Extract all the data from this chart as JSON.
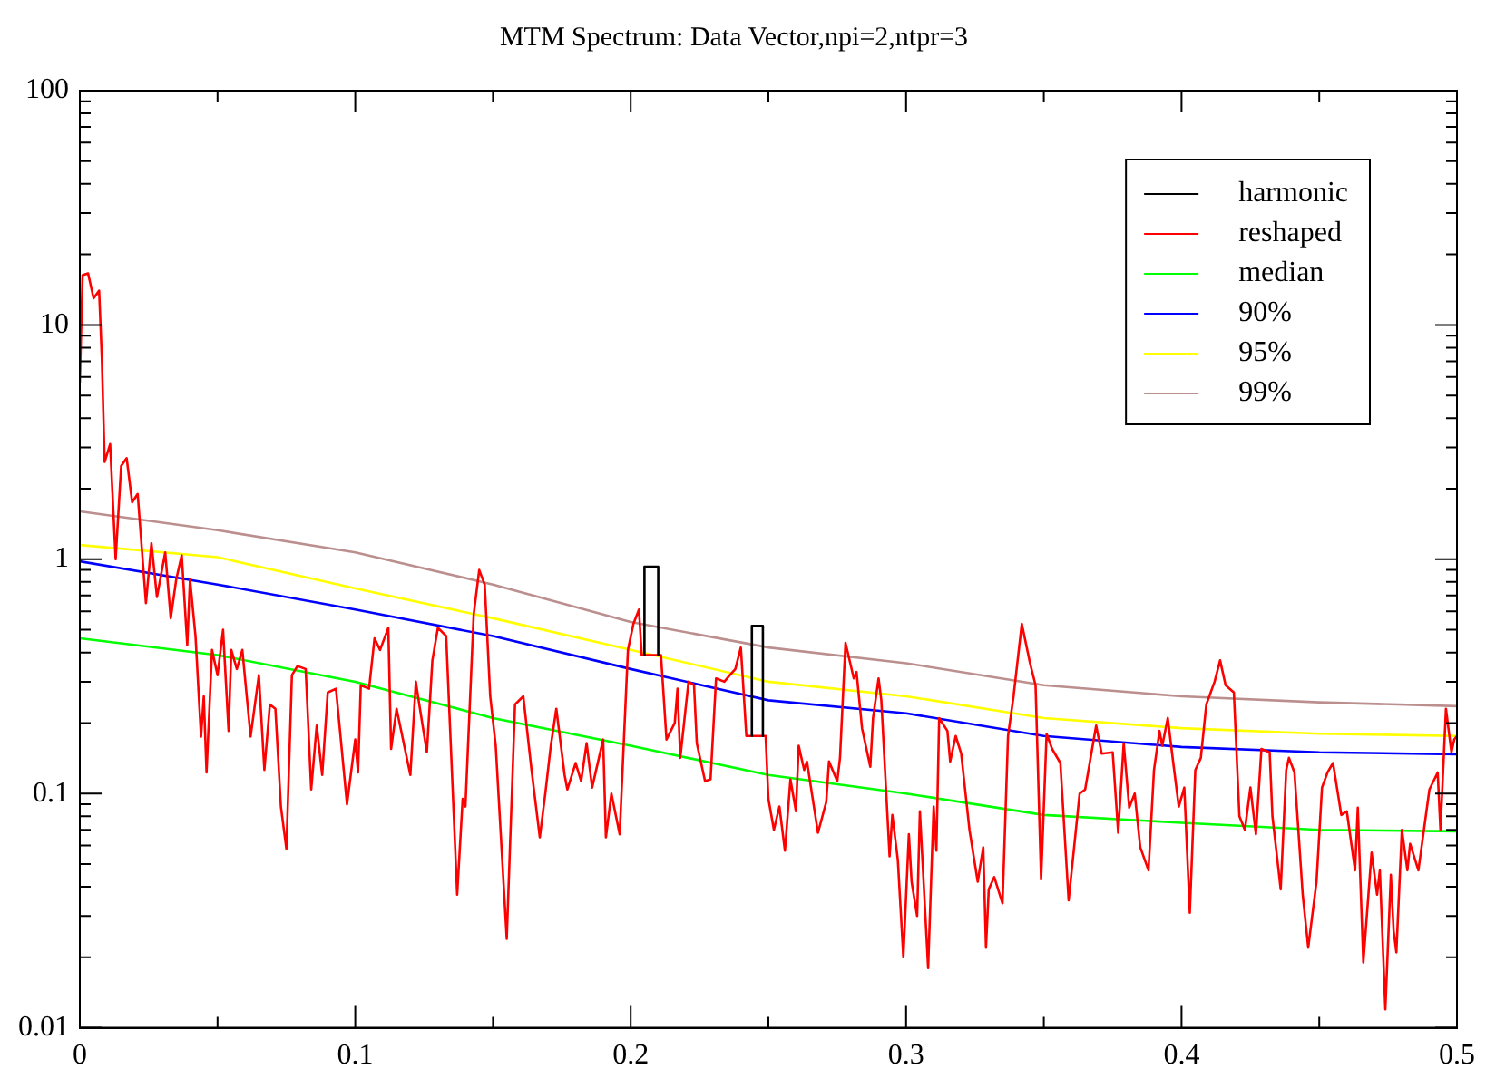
{
  "chart_data": {
    "type": "line",
    "title": "MTM Spectrum: Data Vector,npi=2,ntpr=3",
    "log": "y",
    "grid": false,
    "legend": "top right",
    "marker": "none",
    "line_style": "solid",
    "xlim": [
      0,
      0.5
    ],
    "xticks": [
      0,
      {
        "value": 0.05,
        "label": null
      },
      0.1,
      {
        "value": 0.15,
        "label": null
      },
      0.2,
      {
        "value": 0.25,
        "label": null
      },
      0.3,
      {
        "value": 0.35,
        "label": null
      },
      0.4,
      {
        "value": 0.45,
        "label": null
      },
      0.5
    ],
    "ylim": [
      0.01,
      100
    ],
    "yticks": [
      0.01,
      {
        "value": 0.02,
        "label": null
      },
      {
        "value": 0.03,
        "label": null
      },
      {
        "value": 0.04,
        "label": null
      },
      {
        "value": 0.05,
        "label": null
      },
      {
        "value": 0.06,
        "label": null
      },
      {
        "value": 0.07,
        "label": null
      },
      {
        "value": 0.08,
        "label": null
      },
      {
        "value": 0.09,
        "label": null
      },
      0.1,
      {
        "value": 0.2,
        "label": null
      },
      {
        "value": 0.3,
        "label": null
      },
      {
        "value": 0.4,
        "label": null
      },
      {
        "value": 0.5,
        "label": null
      },
      {
        "value": 0.6,
        "label": null
      },
      {
        "value": 0.7,
        "label": null
      },
      {
        "value": 0.8,
        "label": null
      },
      {
        "value": 0.9,
        "label": null
      },
      1,
      {
        "value": 2,
        "label": null
      },
      {
        "value": 3,
        "label": null
      },
      {
        "value": 4,
        "label": null
      },
      {
        "value": 5,
        "label": null
      },
      {
        "value": 6,
        "label": null
      },
      {
        "value": 7,
        "label": null
      },
      {
        "value": 8,
        "label": null
      },
      {
        "value": 9,
        "label": null
      },
      10,
      {
        "value": 20,
        "label": null
      },
      {
        "value": 30,
        "label": null
      },
      {
        "value": 40,
        "label": null
      },
      {
        "value": 50,
        "label": null
      },
      {
        "value": 60,
        "label": null
      },
      {
        "value": 70,
        "label": null
      },
      {
        "value": 80,
        "label": null
      },
      {
        "value": 90,
        "label": null
      },
      100
    ],
    "series": [
      {
        "name": "harmonic",
        "color": "#000000",
        "x": [
          0.205,
          0.205,
          0.21,
          0.21,
          0.227,
          0.244,
          0.244,
          0.248,
          0.248
        ],
        "values": [
          0.39,
          0.93,
          0.93,
          0.39,
          null,
          0.176,
          0.52,
          0.52,
          0.176
        ]
      },
      {
        "name": "reshaped",
        "color": "#ff0000",
        "x": [
          0,
          0.001,
          0.003,
          0.005,
          0.007,
          0.008,
          0.009,
          0.011,
          0.013,
          0.015,
          0.017,
          0.019,
          0.021,
          0.024,
          0.026,
          0.028,
          0.031,
          0.033,
          0.035,
          0.037,
          0.039,
          0.04,
          0.042,
          0.044,
          0.045,
          0.046,
          0.048,
          0.05,
          0.052,
          0.054,
          0.055,
          0.057,
          0.059,
          0.062,
          0.065,
          0.067,
          0.069,
          0.071,
          0.073,
          0.075,
          0.077,
          0.079,
          0.082,
          0.084,
          0.086,
          0.088,
          0.09,
          0.093,
          0.097,
          0.1,
          0.101,
          0.102,
          0.105,
          0.107,
          0.109,
          0.112,
          0.113,
          0.115,
          0.12,
          0.122,
          0.123,
          0.126,
          0.128,
          0.13,
          0.133,
          0.137,
          0.139,
          0.14,
          0.143,
          0.145,
          0.147,
          0.149,
          0.151,
          0.155,
          0.158,
          0.161,
          0.164,
          0.167,
          0.169,
          0.171,
          0.173,
          0.176,
          0.177,
          0.18,
          0.182,
          0.184,
          0.186,
          0.19,
          0.191,
          0.193,
          0.196,
          0.199,
          0.201,
          0.203,
          0.204,
          0.211,
          0.213,
          0.216,
          0.217,
          0.218,
          0.221,
          0.223,
          0.224,
          0.227,
          0.229,
          0.231,
          0.234,
          0.236,
          0.238,
          0.24,
          0.242,
          0.249,
          0.25,
          0.252,
          0.254,
          0.256,
          0.258,
          0.26,
          0.261,
          0.263,
          0.264,
          0.268,
          0.271,
          0.272,
          0.275,
          0.276,
          0.278,
          0.281,
          0.282,
          0.284,
          0.287,
          0.288,
          0.29,
          0.291,
          0.294,
          0.295,
          0.297,
          0.299,
          0.301,
          0.302,
          0.304,
          0.305,
          0.308,
          0.31,
          0.311,
          0.312,
          0.315,
          0.316,
          0.318,
          0.32,
          0.323,
          0.326,
          0.328,
          0.329,
          0.33,
          0.332,
          0.335,
          0.337,
          0.339,
          0.342,
          0.345,
          0.347,
          0.349,
          0.351,
          0.353,
          0.356,
          0.359,
          0.361,
          0.363,
          0.365,
          0.369,
          0.371,
          0.375,
          0.377,
          0.379,
          0.381,
          0.383,
          0.385,
          0.388,
          0.39,
          0.392,
          0.393,
          0.395,
          0.397,
          0.399,
          0.401,
          0.403,
          0.405,
          0.407,
          0.409,
          0.412,
          0.414,
          0.416,
          0.419,
          0.421,
          0.423,
          0.425,
          0.427,
          0.429,
          0.432,
          0.433,
          0.436,
          0.438,
          0.439,
          0.441,
          0.444,
          0.446,
          0.449,
          0.451,
          0.453,
          0.455,
          0.458,
          0.46,
          0.463,
          0.464,
          0.466,
          0.468,
          0.469,
          0.471,
          0.472,
          0.474,
          0.476,
          0.477,
          0.478,
          0.48,
          0.482,
          0.483,
          0.486,
          0.488,
          0.49,
          0.493,
          0.494,
          0.496,
          0.498,
          0.499,
          0.5
        ],
        "values": [
          5.7,
          16.3,
          16.6,
          13,
          14,
          7.2,
          2.6,
          3.1,
          1.0,
          2.5,
          2.7,
          1.75,
          1.9,
          0.65,
          1.17,
          0.69,
          1.07,
          0.56,
          0.82,
          1.04,
          0.43,
          0.82,
          0.47,
          0.175,
          0.26,
          0.123,
          0.41,
          0.32,
          0.5,
          0.185,
          0.41,
          0.34,
          0.41,
          0.175,
          0.32,
          0.126,
          0.24,
          0.23,
          0.088,
          0.058,
          0.32,
          0.35,
          0.34,
          0.104,
          0.195,
          0.12,
          0.27,
          0.28,
          0.09,
          0.17,
          0.123,
          0.29,
          0.28,
          0.46,
          0.41,
          0.51,
          0.155,
          0.23,
          0.12,
          0.3,
          0.25,
          0.15,
          0.37,
          0.51,
          0.47,
          0.037,
          0.095,
          0.088,
          0.58,
          0.9,
          0.78,
          0.26,
          0.16,
          0.024,
          0.24,
          0.26,
          0.126,
          0.065,
          0.1,
          0.16,
          0.23,
          0.12,
          0.104,
          0.135,
          0.113,
          0.164,
          0.106,
          0.17,
          0.065,
          0.1,
          0.067,
          0.41,
          0.53,
          0.61,
          0.39,
          0.39,
          0.17,
          0.2,
          0.28,
          0.142,
          0.3,
          0.29,
          0.164,
          0.113,
          0.115,
          0.31,
          0.3,
          0.32,
          0.34,
          0.42,
          0.176,
          0.176,
          0.095,
          0.07,
          0.088,
          0.057,
          0.115,
          0.084,
          0.16,
          0.126,
          0.137,
          0.068,
          0.092,
          0.137,
          0.113,
          0.142,
          0.44,
          0.31,
          0.33,
          0.19,
          0.13,
          0.21,
          0.31,
          0.25,
          0.054,
          0.081,
          0.052,
          0.02,
          0.067,
          0.042,
          0.03,
          0.084,
          0.018,
          0.088,
          0.057,
          0.21,
          0.185,
          0.137,
          0.176,
          0.148,
          0.07,
          0.042,
          0.059,
          0.022,
          0.039,
          0.044,
          0.034,
          0.176,
          0.26,
          0.53,
          0.36,
          0.29,
          0.043,
          0.18,
          0.155,
          0.135,
          0.035,
          0.059,
          0.1,
          0.104,
          0.195,
          0.148,
          0.15,
          0.068,
          0.164,
          0.087,
          0.1,
          0.059,
          0.047,
          0.126,
          0.185,
          0.16,
          0.21,
          0.135,
          0.088,
          0.106,
          0.031,
          0.126,
          0.142,
          0.24,
          0.3,
          0.37,
          0.29,
          0.27,
          0.08,
          0.07,
          0.106,
          0.067,
          0.155,
          0.15,
          0.08,
          0.039,
          0.126,
          0.142,
          0.123,
          0.037,
          0.022,
          0.042,
          0.106,
          0.123,
          0.135,
          0.081,
          0.084,
          0.047,
          0.087,
          0.019,
          0.039,
          0.056,
          0.037,
          0.047,
          0.012,
          0.045,
          0.026,
          0.021,
          0.07,
          0.047,
          0.061,
          0.047,
          0.07,
          0.104,
          0.123,
          0.07,
          0.23,
          0.15,
          0.17,
          0.176
        ]
      },
      {
        "name": "median",
        "color": "#00ff00",
        "x": [
          0,
          0.05,
          0.1,
          0.15,
          0.2,
          0.25,
          0.3,
          0.35,
          0.4,
          0.45,
          0.5
        ],
        "values": [
          0.46,
          0.39,
          0.3,
          0.21,
          0.16,
          0.12,
          0.1,
          0.081,
          0.075,
          0.07,
          0.069
        ]
      },
      {
        "name": "90%",
        "color": "#0000ff",
        "x": [
          0,
          0.05,
          0.1,
          0.15,
          0.2,
          0.25,
          0.3,
          0.35,
          0.4,
          0.45,
          0.5
        ],
        "values": [
          0.98,
          0.78,
          0.61,
          0.47,
          0.34,
          0.25,
          0.22,
          0.176,
          0.158,
          0.15,
          0.147
        ]
      },
      {
        "name": "95%",
        "color": "#ffff00",
        "x": [
          0,
          0.05,
          0.1,
          0.15,
          0.2,
          0.25,
          0.3,
          0.35,
          0.4,
          0.45,
          0.5
        ],
        "values": [
          1.15,
          1.02,
          0.75,
          0.56,
          0.41,
          0.3,
          0.26,
          0.21,
          0.19,
          0.18,
          0.176
        ]
      },
      {
        "name": "99%",
        "color": "#bc8f8f",
        "x": [
          0,
          0.05,
          0.1,
          0.15,
          0.2,
          0.25,
          0.3,
          0.35,
          0.4,
          0.45,
          0.5
        ],
        "values": [
          1.6,
          1.33,
          1.07,
          0.78,
          0.54,
          0.42,
          0.36,
          0.29,
          0.26,
          0.245,
          0.236
        ]
      }
    ]
  }
}
